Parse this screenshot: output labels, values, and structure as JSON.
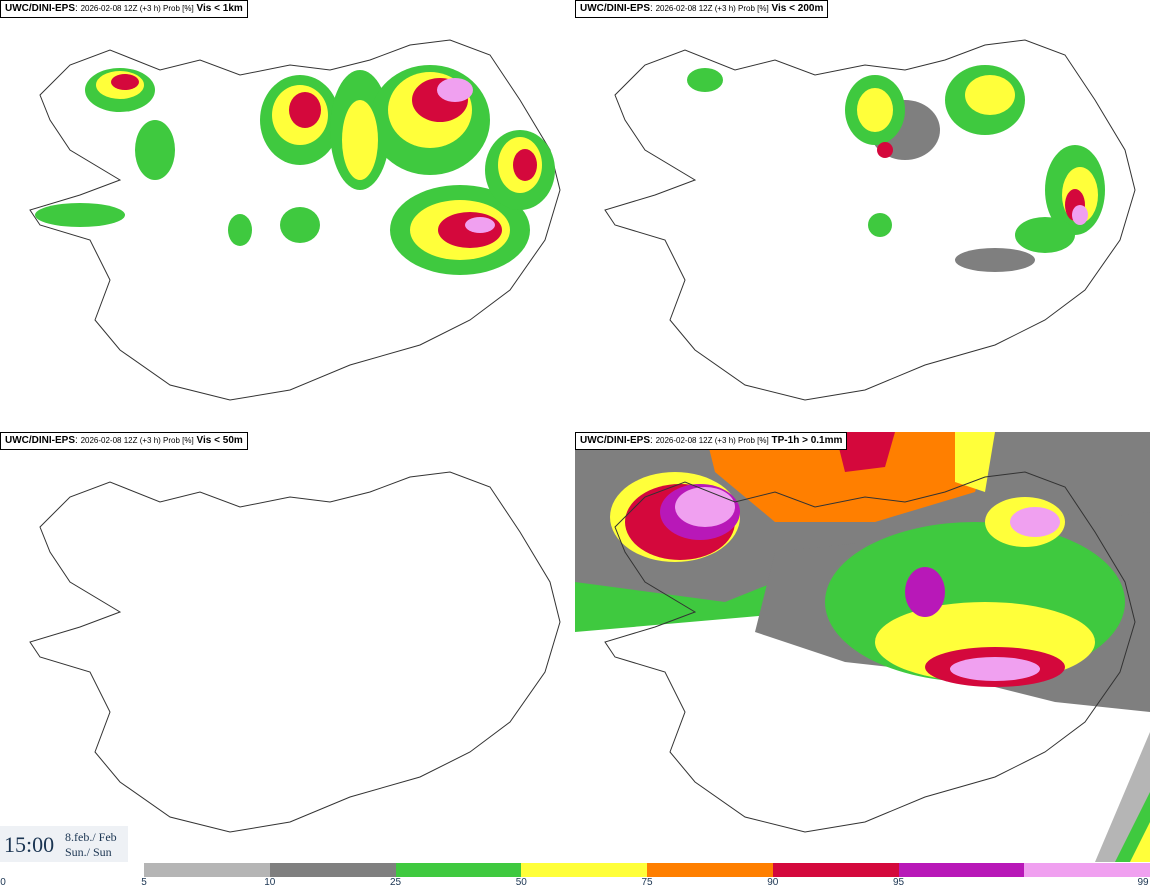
{
  "panels": [
    {
      "source": "UWC/DINI-EPS",
      "run": "2026-02-08 12Z (+3 h) Prob [%]",
      "variable": "Vis < 1km"
    },
    {
      "source": "UWC/DINI-EPS",
      "run": "2026-02-08 12Z (+3 h) Prob [%]",
      "variable": "Vis < 200m"
    },
    {
      "source": "UWC/DINI-EPS",
      "run": "2026-02-08 12Z (+3 h) Prob [%]",
      "variable": "Vis < 50m"
    },
    {
      "source": "UWC/DINI-EPS",
      "run": "2026-02-08 12Z (+3 h) Prob [%]",
      "variable": "TP-1h > 0.1mm"
    }
  ],
  "valid_time": {
    "time": "15:00",
    "date_line1": "8.feb./ Feb",
    "date_line2": "Sun./ Sun"
  },
  "colorbar": {
    "ticks": [
      "0",
      "5",
      "10",
      "25",
      "50",
      "75",
      "90",
      "95",
      "99"
    ],
    "colors": [
      "#b5b5b5",
      "#7f7f7f",
      "#3fc93f",
      "#ffff3a",
      "#ff7f00",
      "#d4083c",
      "#b818b8",
      "#f0a0f0"
    ]
  }
}
